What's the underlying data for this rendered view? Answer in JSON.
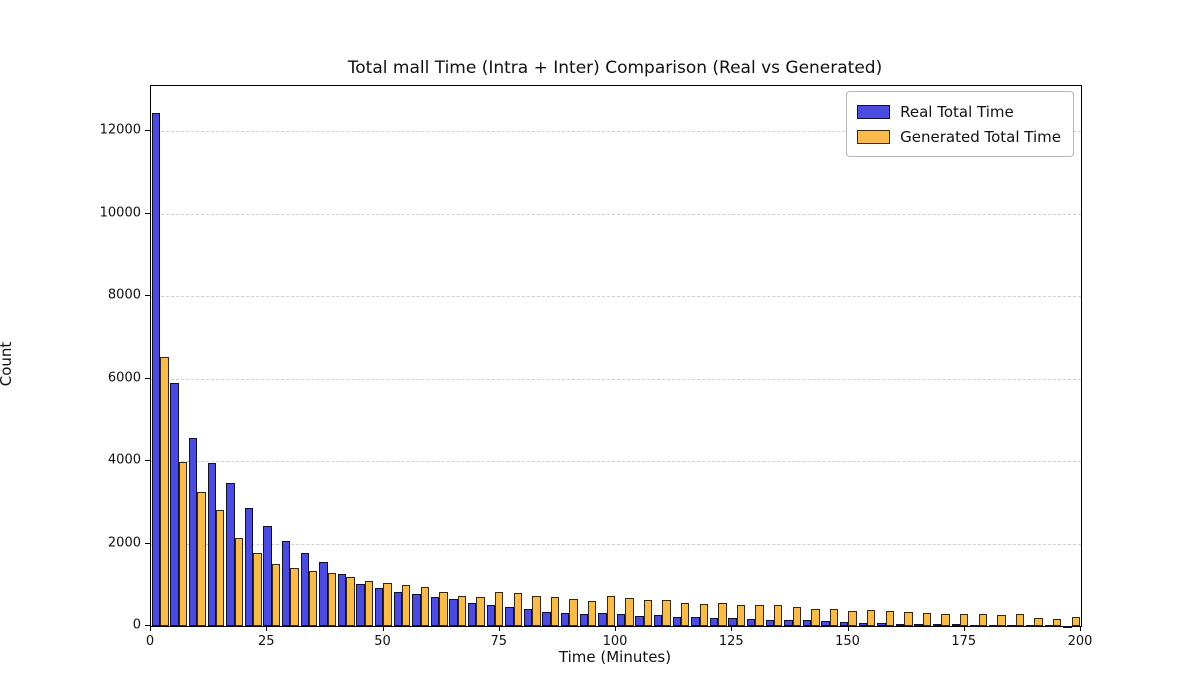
{
  "chart_data": {
    "type": "bar",
    "subtype": "paired-histogram",
    "title": "Total mall Time (Intra + Inter) Comparison (Real vs Generated)",
    "xlabel": "Time (Minutes)",
    "ylabel": "Count",
    "xlim": [
      0,
      200
    ],
    "ylim": [
      0,
      13100
    ],
    "xticks": [
      0,
      25,
      50,
      75,
      100,
      125,
      150,
      175,
      200
    ],
    "yticks": [
      0,
      2000,
      4000,
      6000,
      8000,
      10000,
      12000
    ],
    "grid": "horizontal-dashed",
    "grid_color": "#cfcfcf",
    "legend_position": "upper-right",
    "bin_width_minutes": 4,
    "bin_starts": [
      0,
      4,
      8,
      12,
      16,
      20,
      24,
      28,
      32,
      36,
      40,
      44,
      48,
      52,
      56,
      60,
      64,
      68,
      72,
      76,
      80,
      84,
      88,
      92,
      96,
      100,
      104,
      108,
      112,
      116,
      120,
      124,
      128,
      132,
      136,
      140,
      144,
      148,
      152,
      156,
      160,
      164,
      168,
      172,
      176,
      180,
      184,
      188,
      192,
      196
    ],
    "series": [
      {
        "name": "Real Total Time",
        "color": "#4b4be0",
        "edge_color": "rgba(0,0,0,0.78)",
        "values": [
          12450,
          5900,
          4550,
          3950,
          3470,
          2870,
          2430,
          2060,
          1780,
          1560,
          1250,
          1030,
          915,
          815,
          785,
          695,
          655,
          555,
          505,
          455,
          410,
          335,
          310,
          280,
          325,
          300,
          250,
          265,
          220,
          210,
          200,
          185,
          160,
          155,
          145,
          140,
          120,
          100,
          80,
          65,
          55,
          50,
          42,
          38,
          32,
          28,
          24,
          20,
          16,
          12
        ]
      },
      {
        "name": "Generated Total Time",
        "color": "#f9bb49",
        "edge_color": "rgba(0,0,0,0.78)",
        "values": [
          6530,
          3990,
          3240,
          2820,
          2140,
          1780,
          1500,
          1400,
          1340,
          1280,
          1190,
          1100,
          1045,
          1005,
          945,
          815,
          735,
          700,
          815,
          800,
          720,
          695,
          660,
          595,
          730,
          690,
          625,
          640,
          560,
          535,
          550,
          520,
          510,
          510,
          455,
          405,
          420,
          360,
          380,
          360,
          345,
          315,
          280,
          300,
          280,
          265,
          300,
          200,
          160,
          230
        ]
      }
    ]
  }
}
